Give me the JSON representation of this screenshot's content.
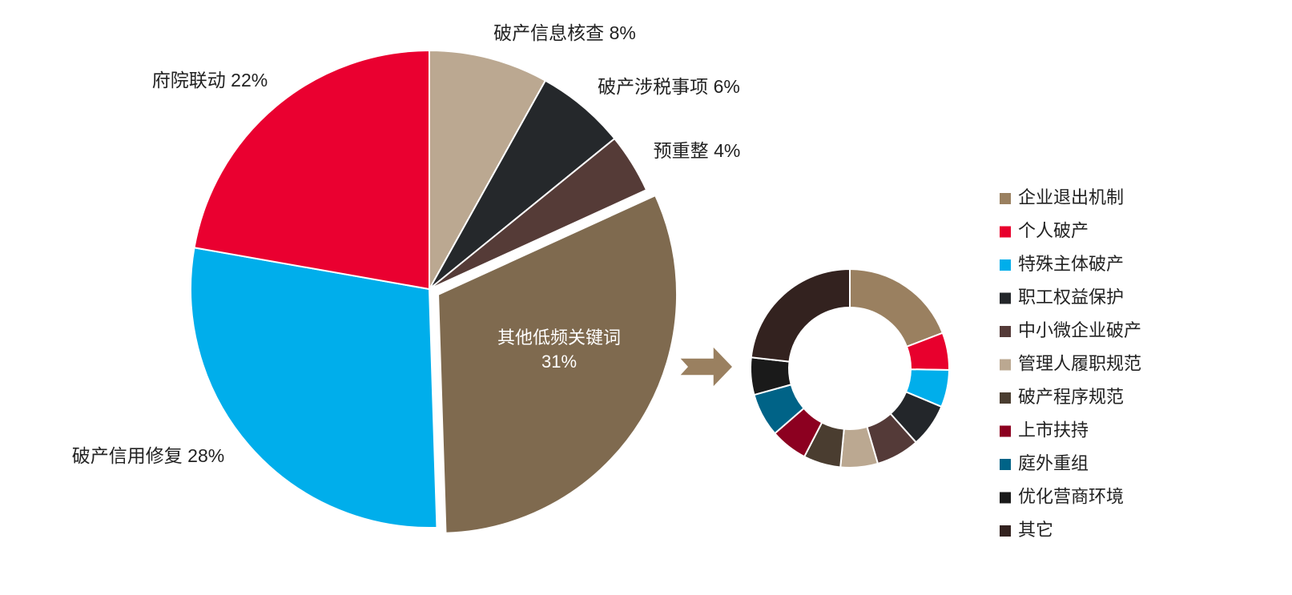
{
  "chart_data": [
    {
      "type": "pie",
      "categories": [
        "破产信息核查",
        "破产涉税事项",
        "预重整",
        "其他低频关键词",
        "破产信用修复",
        "府院联动"
      ],
      "values": [
        8,
        6,
        4,
        31,
        28,
        22
      ],
      "value_labels": [
        "8%",
        "6%",
        "4%",
        "31%",
        "28%",
        "22%"
      ],
      "colors": [
        "#bba891",
        "#25282b",
        "#553b37",
        "#7f6a4f",
        "#00aeeb",
        "#ea0030"
      ],
      "exploded": [
        3
      ]
    },
    {
      "type": "donut",
      "categories": [
        "企业退出机制",
        "个人破产",
        "特殊主体破产",
        "职工权益保护",
        "中小微企业破产",
        "管理人履职规范",
        "破产程序规范",
        "上市扶持",
        "庭外重组",
        "优化营商环境",
        "其它"
      ],
      "values": [
        19,
        6,
        6,
        7,
        7,
        6,
        6,
        6,
        7,
        6,
        23
      ],
      "colors": [
        "#9a8060",
        "#e8002d",
        "#00aeeb",
        "#23262a",
        "#543a38",
        "#bba891",
        "#4a3d30",
        "#8c0020",
        "#006387",
        "#1a1a1a",
        "#33221f"
      ],
      "legend": "right"
    }
  ]
}
